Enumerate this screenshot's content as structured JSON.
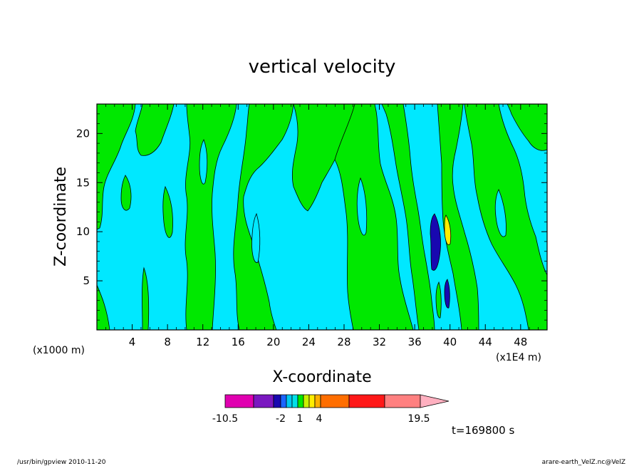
{
  "chart_data": {
    "type": "heatmap",
    "title": "vertical velocity",
    "xlabel": "X-coordinate",
    "ylabel": "Z-coordinate",
    "xlim": [
      0,
      51
    ],
    "ylim": [
      0,
      23
    ],
    "x_ticks": [
      4,
      8,
      12,
      16,
      20,
      24,
      28,
      32,
      36,
      40,
      44,
      48
    ],
    "y_ticks": [
      5,
      10,
      15,
      20
    ],
    "x_unit_left": "(x1000 m)",
    "x_unit_right": "(x1E4 m)",
    "time_label": "t=169800 s",
    "colorbar": {
      "tick_labels": [
        "-10.5",
        "-2",
        "1",
        "4",
        "19.5"
      ],
      "colors": [
        "#e000b0",
        "#7a18c0",
        "#1808b0",
        "#1a64ff",
        "#00c8f0",
        "#00e0e8",
        "#00e800",
        "#c8f000",
        "#ffee00",
        "#ffb000",
        "#ff6e00",
        "#ff1818",
        "#ff8080",
        "#ffb0c0"
      ],
      "colors_note_removed": true
    }
  },
  "footer": {
    "left": "/usr/bin/gpview   2010-11-20",
    "right": "arare-earth_VelZ.nc@VelZ"
  }
}
